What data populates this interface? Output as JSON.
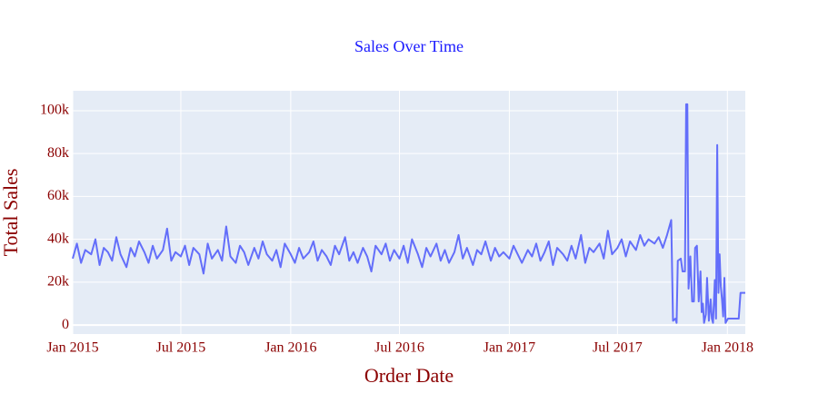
{
  "chart_data": {
    "type": "line",
    "title": "Sales Over Time",
    "xlabel": "Order Date",
    "ylabel": "Total Sales",
    "color": "#636efa",
    "grid": true,
    "xlim": [
      "2015-01-01",
      "2018-01-31"
    ],
    "xticks": [
      {
        "value": "2015-01-01",
        "label": "Jan 2015"
      },
      {
        "value": "2015-07-01",
        "label": "Jul 2015"
      },
      {
        "value": "2016-01-01",
        "label": "Jan 2016"
      },
      {
        "value": "2016-07-01",
        "label": "Jul 2016"
      },
      {
        "value": "2017-01-01",
        "label": "Jan 2017"
      },
      {
        "value": "2017-07-01",
        "label": "Jul 2017"
      },
      {
        "value": "2018-01-01",
        "label": "Jan 2018"
      }
    ],
    "ylim": [
      -4200,
      109300
    ],
    "yticks": [
      0,
      {
        "value": 20000,
        "label": "20k"
      },
      {
        "value": 40000,
        "label": "40k"
      },
      {
        "value": 60000,
        "label": "60k"
      },
      {
        "value": 80000,
        "label": "80k"
      },
      {
        "value": 100000,
        "label": "100k"
      }
    ],
    "x": [
      "2015-01-01",
      "2015-01-08",
      "2015-01-15",
      "2015-01-22",
      "2015-02-01",
      "2015-02-08",
      "2015-02-15",
      "2015-02-22",
      "2015-03-01",
      "2015-03-08",
      "2015-03-15",
      "2015-03-22",
      "2015-04-01",
      "2015-04-08",
      "2015-04-15",
      "2015-04-22",
      "2015-05-01",
      "2015-05-08",
      "2015-05-15",
      "2015-05-22",
      "2015-06-01",
      "2015-06-08",
      "2015-06-15",
      "2015-06-22",
      "2015-07-01",
      "2015-07-08",
      "2015-07-15",
      "2015-07-22",
      "2015-08-01",
      "2015-08-08",
      "2015-08-15",
      "2015-08-22",
      "2015-09-01",
      "2015-09-08",
      "2015-09-15",
      "2015-09-22",
      "2015-10-01",
      "2015-10-08",
      "2015-10-15",
      "2015-10-22",
      "2015-11-01",
      "2015-11-08",
      "2015-11-15",
      "2015-11-22",
      "2015-12-01",
      "2015-12-08",
      "2015-12-15",
      "2015-12-22",
      "2016-01-01",
      "2016-01-08",
      "2016-01-15",
      "2016-01-22",
      "2016-02-01",
      "2016-02-08",
      "2016-02-15",
      "2016-02-22",
      "2016-03-01",
      "2016-03-08",
      "2016-03-15",
      "2016-03-22",
      "2016-04-01",
      "2016-04-08",
      "2016-04-15",
      "2016-04-22",
      "2016-05-01",
      "2016-05-08",
      "2016-05-15",
      "2016-05-22",
      "2016-06-01",
      "2016-06-08",
      "2016-06-15",
      "2016-06-22",
      "2016-07-01",
      "2016-07-08",
      "2016-07-15",
      "2016-07-22",
      "2016-08-01",
      "2016-08-08",
      "2016-08-15",
      "2016-08-22",
      "2016-09-01",
      "2016-09-08",
      "2016-09-15",
      "2016-09-22",
      "2016-10-01",
      "2016-10-08",
      "2016-10-15",
      "2016-10-22",
      "2016-11-01",
      "2016-11-08",
      "2016-11-15",
      "2016-11-22",
      "2016-12-01",
      "2016-12-08",
      "2016-12-15",
      "2016-12-22",
      "2017-01-01",
      "2017-01-08",
      "2017-01-15",
      "2017-01-22",
      "2017-02-01",
      "2017-02-08",
      "2017-02-15",
      "2017-02-22",
      "2017-03-01",
      "2017-03-08",
      "2017-03-15",
      "2017-03-22",
      "2017-04-01",
      "2017-04-08",
      "2017-04-15",
      "2017-04-22",
      "2017-05-01",
      "2017-05-08",
      "2017-05-15",
      "2017-05-22",
      "2017-06-01",
      "2017-06-08",
      "2017-06-15",
      "2017-06-22",
      "2017-07-01",
      "2017-07-08",
      "2017-07-15",
      "2017-07-22",
      "2017-08-01",
      "2017-08-08",
      "2017-08-15",
      "2017-08-22",
      "2017-09-01",
      "2017-09-08",
      "2017-09-15",
      "2017-09-22",
      "2017-09-29",
      "2017-10-02",
      "2017-10-06",
      "2017-10-08",
      "2017-10-10",
      "2017-10-15",
      "2017-10-18",
      "2017-10-22",
      "2017-10-24",
      "2017-10-26",
      "2017-10-28",
      "2017-10-31",
      "2017-11-03",
      "2017-11-06",
      "2017-11-08",
      "2017-11-11",
      "2017-11-14",
      "2017-11-17",
      "2017-11-19",
      "2017-11-21",
      "2017-11-23",
      "2017-11-26",
      "2017-11-28",
      "2017-12-01",
      "2017-12-04",
      "2017-12-06",
      "2017-12-08",
      "2017-12-11",
      "2017-12-13",
      "2017-12-15",
      "2017-12-17",
      "2017-12-19",
      "2017-12-21",
      "2017-12-23",
      "2017-12-25",
      "2017-12-27",
      "2017-12-29",
      "2018-01-02",
      "2018-01-10",
      "2018-01-20",
      "2018-01-23",
      "2018-01-31"
    ],
    "values": [
      31000,
      38000,
      29000,
      35000,
      33000,
      40000,
      28000,
      36000,
      34000,
      30000,
      41000,
      33000,
      27000,
      36000,
      32000,
      39000,
      34000,
      29000,
      37000,
      31000,
      35000,
      45000,
      30000,
      34000,
      32000,
      37000,
      28000,
      36000,
      33000,
      24000,
      38000,
      31000,
      35000,
      30000,
      46000,
      32000,
      29000,
      37000,
      34000,
      28000,
      36000,
      31000,
      39000,
      33000,
      30000,
      35000,
      27000,
      38000,
      33000,
      29000,
      36000,
      31000,
      34000,
      39000,
      30000,
      35000,
      32000,
      28000,
      37000,
      33000,
      41000,
      30000,
      34000,
      29000,
      36000,
      32000,
      25000,
      37000,
      33000,
      38000,
      30000,
      35000,
      31000,
      37000,
      29000,
      40000,
      33000,
      27000,
      36000,
      32000,
      38000,
      30000,
      35000,
      29000,
      34000,
      42000,
      31000,
      36000,
      28000,
      35000,
      33000,
      39000,
      30000,
      36000,
      32000,
      34000,
      31000,
      37000,
      33000,
      29000,
      35000,
      32000,
      38000,
      30000,
      34000,
      39000,
      28000,
      36000,
      33000,
      30000,
      37000,
      31000,
      42000,
      29000,
      36000,
      34000,
      38000,
      31000,
      44000,
      33000,
      36000,
      40000,
      32000,
      39000,
      35000,
      42000,
      37000,
      40000,
      38000,
      41000,
      36000,
      42000,
      49000,
      2000,
      3000,
      1000,
      30000,
      31000,
      25000,
      25000,
      103000,
      103000,
      17000,
      32000,
      11000,
      11000,
      36000,
      37000,
      11000,
      25000,
      6000,
      10000,
      1000,
      5000,
      22000,
      2000,
      12000,
      3000,
      1000,
      21000,
      3000,
      84000,
      15000,
      33000,
      18000,
      12000,
      4000,
      22000,
      1000,
      3000,
      3000,
      3000,
      15000,
      15000
    ]
  }
}
